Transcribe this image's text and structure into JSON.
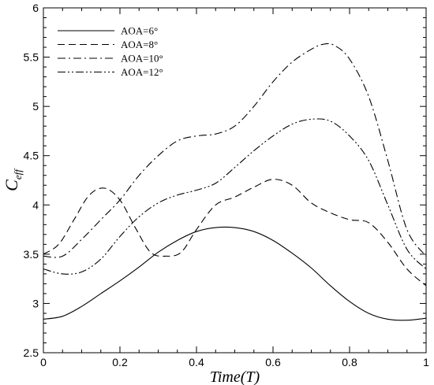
{
  "chart_data": {
    "type": "line",
    "xlabel": "Time(T)",
    "ylabel_main": "C",
    "ylabel_sub": "eff",
    "xlim": [
      0,
      1
    ],
    "ylim": [
      2.5,
      6
    ],
    "xticks": [
      0,
      0.2,
      0.4,
      0.6,
      0.8,
      1
    ],
    "xtick_labels": [
      "0",
      "0.2",
      "0.4",
      "0.6",
      "0.8",
      "1"
    ],
    "yticks": [
      2.5,
      3,
      3.5,
      4,
      4.5,
      5,
      5.5,
      6
    ],
    "ytick_labels": [
      "2.5",
      "3",
      "3.5",
      "4",
      "4.5",
      "5",
      "5.5",
      "6"
    ],
    "grid": false,
    "legend_position": "top-left",
    "series": [
      {
        "name": "AOA=6°",
        "dash": "solid",
        "points": [
          [
            0,
            2.84
          ],
          [
            0.05,
            2.87
          ],
          [
            0.1,
            2.97
          ],
          [
            0.15,
            3.1
          ],
          [
            0.2,
            3.23
          ],
          [
            0.25,
            3.37
          ],
          [
            0.3,
            3.52
          ],
          [
            0.35,
            3.64
          ],
          [
            0.4,
            3.73
          ],
          [
            0.45,
            3.77
          ],
          [
            0.5,
            3.77
          ],
          [
            0.55,
            3.73
          ],
          [
            0.6,
            3.64
          ],
          [
            0.65,
            3.51
          ],
          [
            0.7,
            3.36
          ],
          [
            0.75,
            3.18
          ],
          [
            0.8,
            3.02
          ],
          [
            0.85,
            2.9
          ],
          [
            0.9,
            2.84
          ],
          [
            0.95,
            2.83
          ],
          [
            1,
            2.85
          ]
        ]
      },
      {
        "name": "AOA=8°",
        "dash": "dashed",
        "points": [
          [
            0,
            3.5
          ],
          [
            0.04,
            3.6
          ],
          [
            0.08,
            3.85
          ],
          [
            0.12,
            4.1
          ],
          [
            0.16,
            4.17
          ],
          [
            0.2,
            4.05
          ],
          [
            0.24,
            3.77
          ],
          [
            0.28,
            3.52
          ],
          [
            0.32,
            3.48
          ],
          [
            0.36,
            3.52
          ],
          [
            0.4,
            3.75
          ],
          [
            0.45,
            4.0
          ],
          [
            0.5,
            4.08
          ],
          [
            0.55,
            4.18
          ],
          [
            0.6,
            4.26
          ],
          [
            0.65,
            4.2
          ],
          [
            0.7,
            4.02
          ],
          [
            0.75,
            3.92
          ],
          [
            0.8,
            3.85
          ],
          [
            0.85,
            3.82
          ],
          [
            0.9,
            3.62
          ],
          [
            0.95,
            3.35
          ],
          [
            1,
            3.18
          ]
        ]
      },
      {
        "name": "AOA=10°",
        "dash": "dashdot",
        "points": [
          [
            0,
            3.48
          ],
          [
            0.05,
            3.48
          ],
          [
            0.1,
            3.65
          ],
          [
            0.15,
            3.85
          ],
          [
            0.2,
            4.05
          ],
          [
            0.25,
            4.3
          ],
          [
            0.3,
            4.5
          ],
          [
            0.35,
            4.65
          ],
          [
            0.4,
            4.7
          ],
          [
            0.45,
            4.72
          ],
          [
            0.5,
            4.8
          ],
          [
            0.55,
            5.0
          ],
          [
            0.6,
            5.25
          ],
          [
            0.65,
            5.45
          ],
          [
            0.7,
            5.58
          ],
          [
            0.73,
            5.63
          ],
          [
            0.76,
            5.62
          ],
          [
            0.8,
            5.48
          ],
          [
            0.85,
            5.1
          ],
          [
            0.9,
            4.45
          ],
          [
            0.95,
            3.75
          ],
          [
            1,
            3.48
          ]
        ]
      },
      {
        "name": "AOA=12°",
        "dash": "dashdotdot",
        "points": [
          [
            0,
            3.35
          ],
          [
            0.05,
            3.3
          ],
          [
            0.1,
            3.32
          ],
          [
            0.15,
            3.45
          ],
          [
            0.2,
            3.68
          ],
          [
            0.25,
            3.88
          ],
          [
            0.3,
            4.02
          ],
          [
            0.35,
            4.1
          ],
          [
            0.4,
            4.15
          ],
          [
            0.45,
            4.22
          ],
          [
            0.5,
            4.38
          ],
          [
            0.55,
            4.55
          ],
          [
            0.6,
            4.7
          ],
          [
            0.65,
            4.82
          ],
          [
            0.7,
            4.87
          ],
          [
            0.75,
            4.85
          ],
          [
            0.8,
            4.7
          ],
          [
            0.85,
            4.45
          ],
          [
            0.9,
            4.0
          ],
          [
            0.95,
            3.55
          ],
          [
            1,
            3.35
          ]
        ]
      }
    ]
  }
}
